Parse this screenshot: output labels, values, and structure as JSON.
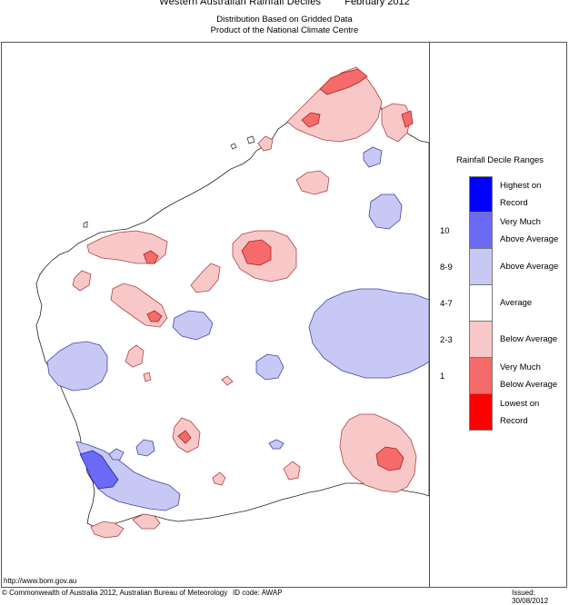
{
  "header": {
    "title": "Western Australian Rainfall Deciles",
    "period": "February 2012",
    "subtitle1": "Distribution Based on Gridded Data",
    "subtitle2": "Product of the National Climate Centre"
  },
  "legend": {
    "title": "Rainfall Decile Ranges",
    "items": [
      {
        "label_line1": "Highest on",
        "label_line2": "Record",
        "decile": "",
        "color": "#0000ff"
      },
      {
        "label_line1": "Very Much",
        "label_line2": "Above Average",
        "decile": "10",
        "color": "#6a6af5"
      },
      {
        "label_line1": "Above Average",
        "label_line2": "",
        "decile": "8-9",
        "color": "#c8c8f5"
      },
      {
        "label_line1": "Average",
        "label_line2": "",
        "decile": "4-7",
        "color": "#ffffff"
      },
      {
        "label_line1": "Below Average",
        "label_line2": "",
        "decile": "2-3",
        "color": "#f8c8c8"
      },
      {
        "label_line1": "Very Much",
        "label_line2": "Below Average",
        "decile": "1",
        "color": "#f56a6a"
      },
      {
        "label_line1": "Lowest on",
        "label_line2": "Record",
        "decile": "",
        "color": "#ff0000"
      }
    ]
  },
  "footer": {
    "url": "http://www.bom.gov.au",
    "copyright": "© Commonwealth of Australia 2012, Australian Bureau of Meteorology",
    "code": "ID code: AWAP",
    "issued": "Issued: 30/08/2012"
  }
}
